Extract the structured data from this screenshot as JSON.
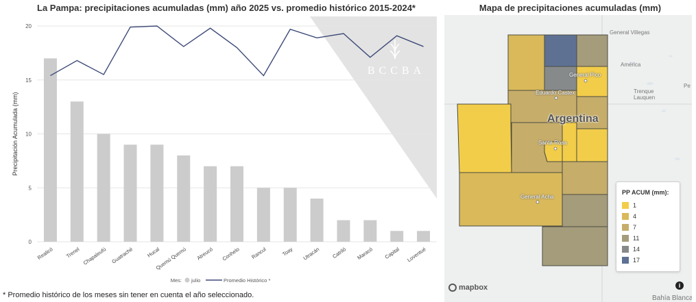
{
  "chart": {
    "title": "La Pampa: precipitaciones acumuladas (mm) año 2025 vs. promedio histórico 2015-2024*",
    "footnote": "* Promedio histórico de los meses sin tener en cuenta el año seleccionado.",
    "watermark": "BCCBA",
    "legend_title": "Mes:",
    "colors": {
      "bar": "#cccccc",
      "line": "#3d4a78",
      "grid": "#e5e5e5",
      "watermark_bg": "#e3e3e3"
    }
  },
  "chart_data": {
    "type": "bar",
    "categories": [
      "Realicó",
      "Trenel",
      "Chapaleufú",
      "Guatraché",
      "Hucal",
      "Quemú Quemú",
      "Atreucó",
      "Conhelo",
      "Rancul",
      "Toay",
      "Utracán",
      "Catriló",
      "Maracó",
      "Capital",
      "Loventué"
    ],
    "series": [
      {
        "name": "julio",
        "type": "bar",
        "values": [
          17,
          13,
          10,
          9,
          9,
          8,
          7,
          7,
          5,
          5,
          4,
          2,
          2,
          1,
          1
        ]
      },
      {
        "name": "Promedio Histórico *",
        "type": "line",
        "values": [
          15.4,
          16.8,
          15.5,
          19.9,
          20.0,
          18.1,
          19.8,
          18.0,
          15.4,
          19.7,
          18.9,
          19.3,
          17.1,
          19.1,
          18.1
        ]
      }
    ],
    "ylabel": "Precipitación Acumulada (mm)",
    "xlabel": "",
    "ylim": [
      0,
      20
    ],
    "yticks": [
      0,
      5,
      10,
      15,
      20
    ],
    "grid": true,
    "legend": "bottom"
  },
  "map": {
    "title": "Mapa de precipitaciones acumuladas (mm)",
    "country_label": "Argentina",
    "cities": [
      "General Pico",
      "Eduardo Castex",
      "Santa Rosa",
      "General Acha"
    ],
    "places": [
      "General Villegas",
      "América",
      "Trenque Lauquen",
      "Bahía Blanca",
      "Pe"
    ],
    "attribution": "mapbox",
    "legend": {
      "title": "PP ACUM (mm):",
      "items": [
        {
          "label": "1",
          "color": "#f2cd4a"
        },
        {
          "label": "4",
          "color": "#d9b95a"
        },
        {
          "label": "7",
          "color": "#c6ad6a"
        },
        {
          "label": "11",
          "color": "#a59c7c"
        },
        {
          "label": "14",
          "color": "#878a8b"
        },
        {
          "label": "17",
          "color": "#5e7193"
        }
      ]
    }
  }
}
